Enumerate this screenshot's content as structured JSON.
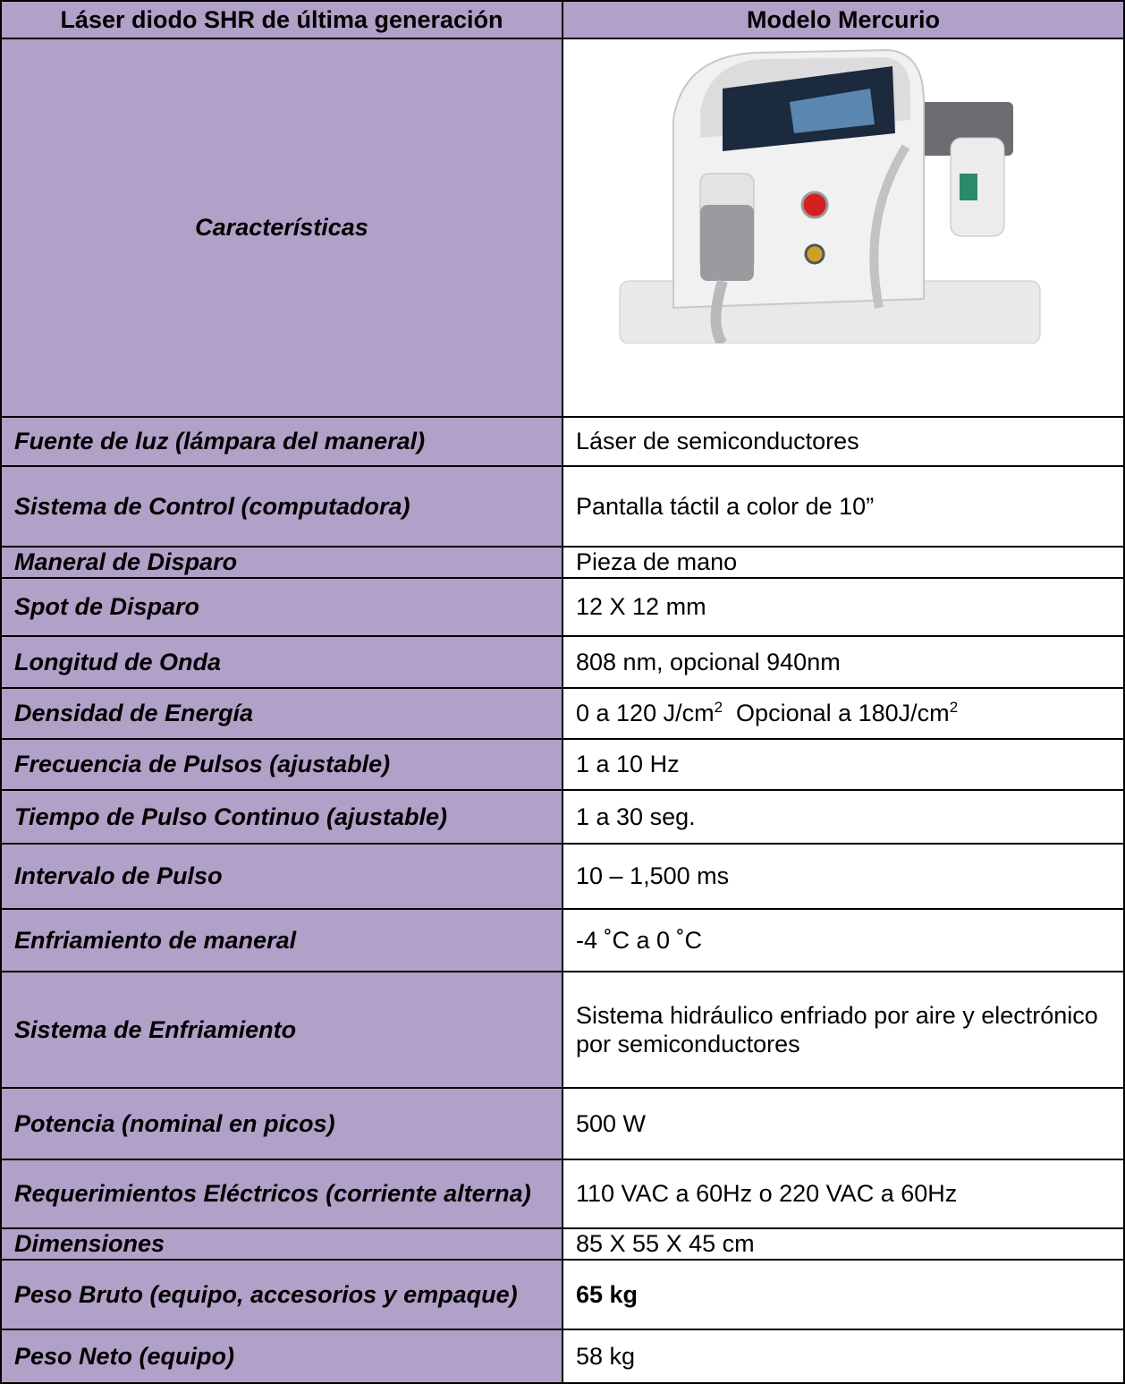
{
  "table": {
    "header": [
      "Láser diodo SHR de última generación",
      "Modelo Mercurio"
    ],
    "feature_label": "Características",
    "rows": [
      {
        "label": "Fuente de luz (lámpara del maneral)",
        "value": "Láser de semiconductores"
      },
      {
        "label": "Sistema de Control (computadora)",
        "value": "Pantalla táctil a color de 10”"
      },
      {
        "label": "Maneral de Disparo",
        "value": "Pieza de mano"
      },
      {
        "label": "Spot de Disparo",
        "value": "12 X 12 mm"
      },
      {
        "label": "Longitud de Onda",
        "value": "808 nm, opcional 940nm"
      },
      {
        "label": "Densidad de Energía",
        "value_parts": [
          "0 a 120 J/cm",
          "2",
          "  Opcional a 180J/cm",
          "2"
        ],
        "superscript": [
          false,
          true,
          false,
          true
        ]
      },
      {
        "label": "Frecuencia de Pulsos (ajustable)",
        "value": "1 a 10 Hz"
      },
      {
        "label": "Tiempo de Pulso Continuo (ajustable)",
        "value": "1 a 30 seg."
      },
      {
        "label": "Intervalo de Pulso",
        "value": "10 – 1,500 ms"
      },
      {
        "label": "Enfriamiento de maneral",
        "value": "-4 ˚C a 0 ˚C"
      },
      {
        "label": "Sistema de Enfriamiento",
        "value": "Sistema hidráulico enfriado por aire y electrónico por semiconductores"
      },
      {
        "label": "Potencia (nominal en picos)",
        "value": "500 W"
      },
      {
        "label": "Requerimientos Eléctricos (corriente alterna)",
        "value": "110 VAC a 60Hz o 220 VAC a 60Hz"
      },
      {
        "label": "Dimensiones",
        "value": "85 X 55 X 45 cm"
      },
      {
        "label": "Peso Bruto (equipo, accesorios y empaque)",
        "value": "65 kg",
        "bold": true
      },
      {
        "label": "Peso Neto (equipo)",
        "value": "58 kg"
      }
    ]
  }
}
